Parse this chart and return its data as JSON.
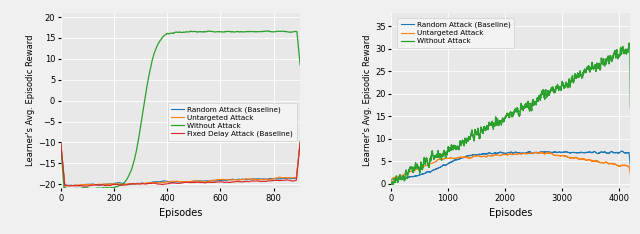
{
  "left": {
    "xlabel": "Episodes",
    "ylabel": "Learner's Avg. Episodic Reward",
    "xlim": [
      0,
      900
    ],
    "ylim": [
      -21,
      21
    ],
    "yticks": [
      -20,
      -15,
      -10,
      -5,
      0,
      5,
      10,
      15,
      20
    ],
    "xticks": [
      0,
      200,
      400,
      600,
      800
    ],
    "legend": [
      "Random Attack (Baseline)",
      "Untargeted Attack",
      "Without Attack",
      "Fixed Delay Attack (Baseline)"
    ],
    "colors": [
      "#1f77b4",
      "#ff7f0e",
      "#2ca02c",
      "#d62728"
    ]
  },
  "right": {
    "xlabel": "Episodes",
    "ylabel": "Learner's Avg. Episodic Reward",
    "xlim": [
      0,
      4200
    ],
    "ylim": [
      -1,
      38
    ],
    "yticks": [
      0,
      5,
      10,
      15,
      20,
      25,
      30,
      35
    ],
    "xticks": [
      0,
      1000,
      2000,
      3000,
      4000
    ],
    "legend": [
      "Random Attack (Baseline)",
      "Untargeted Attack",
      "Without Attack"
    ],
    "colors": [
      "#1f77b4",
      "#ff7f0e",
      "#2ca02c"
    ]
  },
  "bg_color": "#e8e8e8",
  "fig_bg": "#f0f0f0",
  "figure_width": 6.4,
  "figure_height": 2.34
}
